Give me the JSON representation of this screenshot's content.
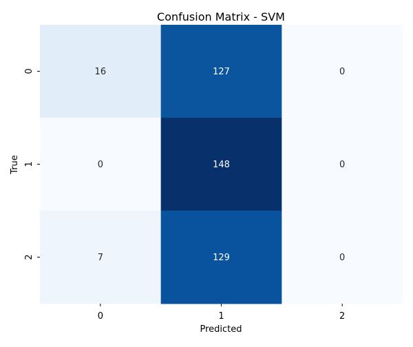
{
  "chart_data": {
    "type": "heatmap",
    "title": "Confusion Matrix - SVM",
    "xlabel": "Predicted",
    "ylabel": "True",
    "x_categories": [
      "0",
      "1",
      "2"
    ],
    "y_categories": [
      "0",
      "1",
      "2"
    ],
    "values": [
      [
        16,
        127,
        0
      ],
      [
        0,
        148,
        0
      ],
      [
        7,
        129,
        0
      ]
    ],
    "colormap": "Blues",
    "value_range": [
      0,
      148
    ],
    "colorbar": false,
    "grid": false,
    "annotation_dark_color": "#262626",
    "annotation_light_color": "#ffffff"
  }
}
